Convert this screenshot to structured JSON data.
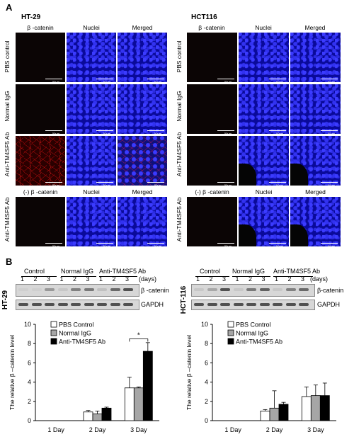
{
  "panelA": {
    "letter": "A",
    "left_title": "HT-29",
    "right_title": "HCT116",
    "col_headers": [
      "β -catenin",
      "Nuclei",
      "Merged"
    ],
    "col_headers_row4_left": [
      "(-) β -catenin",
      "Nuclei",
      "Merged"
    ],
    "row_labels": [
      "PBS control",
      "Normal IgG",
      "Anti-TM4SF5 Ab",
      "Anti-TM4SF5 Ab"
    ]
  },
  "panelB": {
    "letter": "B",
    "left_blot": {
      "cell_line": "HT-29",
      "groups": [
        "Control",
        "Normal  IgG",
        "Anti-TM4SF5 Ab"
      ],
      "lanes": [
        "1",
        "2",
        "3",
        "1",
        "2",
        "3",
        "1",
        "2",
        "3"
      ],
      "rows": [
        "β -catenin",
        "GAPDH"
      ]
    },
    "right_blot": {
      "cell_line": "HCT-116",
      "groups": [
        "Control",
        "Normal  IgG",
        "Anti-TM4SF5  Ab"
      ],
      "lanes": [
        "1",
        "2",
        "3",
        "1",
        "2",
        "3",
        "1",
        "2",
        "3"
      ],
      "days_label": "(days)",
      "rows": [
        "β-catenin",
        "GAPDH"
      ]
    },
    "left_days_label": "(days)"
  },
  "chart_data": [
    {
      "type": "bar",
      "ylabel": "The relative  β –catenin  level",
      "categories": [
        "1 Day",
        "2 Day",
        "3 Day"
      ],
      "ylim": [
        0,
        10
      ],
      "yticks": [
        "0",
        "2",
        "4",
        "6",
        "8",
        "10"
      ],
      "legend": "top-left",
      "series": [
        {
          "name": "PBS Control",
          "values": [
            0,
            0.9,
            3.4
          ],
          "errors": [
            0,
            0.15,
            1.1
          ]
        },
        {
          "name": "Normal IgG",
          "values": [
            0,
            0.7,
            3.4
          ],
          "errors": [
            0,
            0.3,
            0.1
          ]
        },
        {
          "name": "Anti-TM4SF5 Ab",
          "values": [
            0,
            1.3,
            7.2
          ],
          "errors": [
            0,
            0.1,
            0.9
          ]
        }
      ],
      "annotation": "*"
    },
    {
      "type": "bar",
      "ylabel": "The relative  β –catenin  level",
      "categories": [
        "1 Day",
        "2 Day",
        "3 Day"
      ],
      "ylim": [
        0,
        10
      ],
      "yticks": [
        "0",
        "2",
        "4",
        "6",
        "8",
        "10"
      ],
      "legend": "top-left",
      "series": [
        {
          "name": "PBS Control",
          "values": [
            0,
            1.0,
            2.5
          ],
          "errors": [
            0,
            0.15,
            1.0
          ]
        },
        {
          "name": "Normal IgG",
          "values": [
            0,
            1.3,
            2.6
          ],
          "errors": [
            0,
            1.8,
            1.1
          ]
        },
        {
          "name": "Anti-TM4SF5 Ab",
          "values": [
            0,
            1.7,
            2.6
          ],
          "errors": [
            0,
            0.2,
            1.3
          ]
        }
      ]
    }
  ],
  "colors": {
    "pbs": "#ffffff",
    "igg": "#a6a6a6",
    "anti": "#000000"
  }
}
